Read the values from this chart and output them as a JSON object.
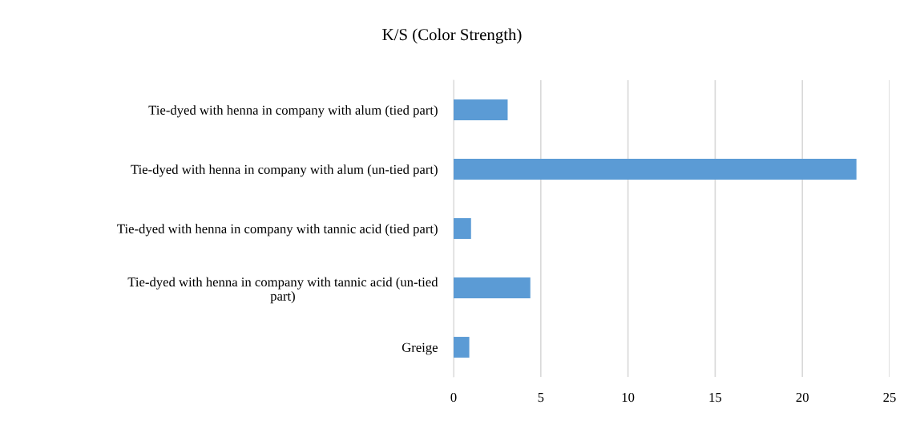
{
  "chart_data": {
    "type": "bar",
    "orientation": "horizontal",
    "title": "K/S (Color Strength)",
    "categories": [
      "Tie-dyed with henna in company with alum (tied part)",
      "Tie-dyed with henna in company with alum (un-tied part)",
      "Tie-dyed with henna in company with tannic acid (tied part)",
      "Tie-dyed with henna in company with tannic acid (un-tied\npart)",
      "Greige"
    ],
    "values": [
      3.1,
      23.1,
      1.0,
      4.4,
      0.9
    ],
    "color": "#5b9bd5",
    "xlim": [
      0,
      25
    ],
    "xticks": [
      0,
      5,
      10,
      15,
      20,
      25
    ],
    "grid": "x"
  }
}
